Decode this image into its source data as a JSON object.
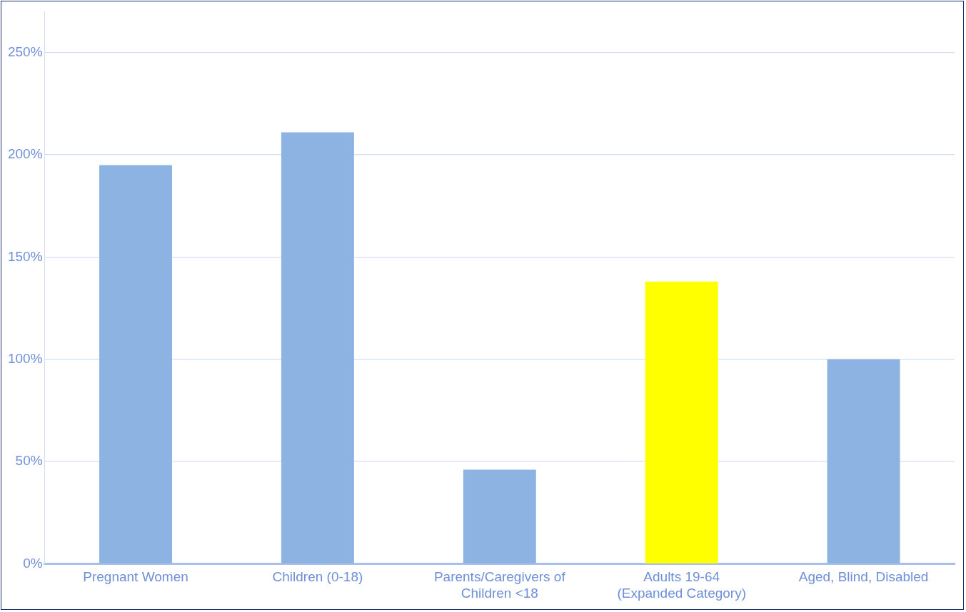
{
  "chart_data": {
    "type": "bar",
    "categories": [
      "Pregnant Women",
      "Children (0-18)",
      "Parents/Caregivers of Children <18",
      "Adults 19-64 (Expanded Category)",
      "Aged, Blind, Disabled"
    ],
    "values": [
      195,
      211,
      46,
      138,
      100
    ],
    "colors": [
      "#8db3e2",
      "#8db3e2",
      "#8db3e2",
      "#ffff00",
      "#8db3e2"
    ],
    "ylim": [
      0,
      270
    ],
    "yticks": [
      {
        "value": 0,
        "label": "0%"
      },
      {
        "value": 50,
        "label": "50%"
      },
      {
        "value": 100,
        "label": "100%"
      },
      {
        "value": 150,
        "label": "150%"
      },
      {
        "value": 200,
        "label": "200%"
      },
      {
        "value": 250,
        "label": "250%"
      }
    ],
    "grid": "y",
    "legend": false
  }
}
